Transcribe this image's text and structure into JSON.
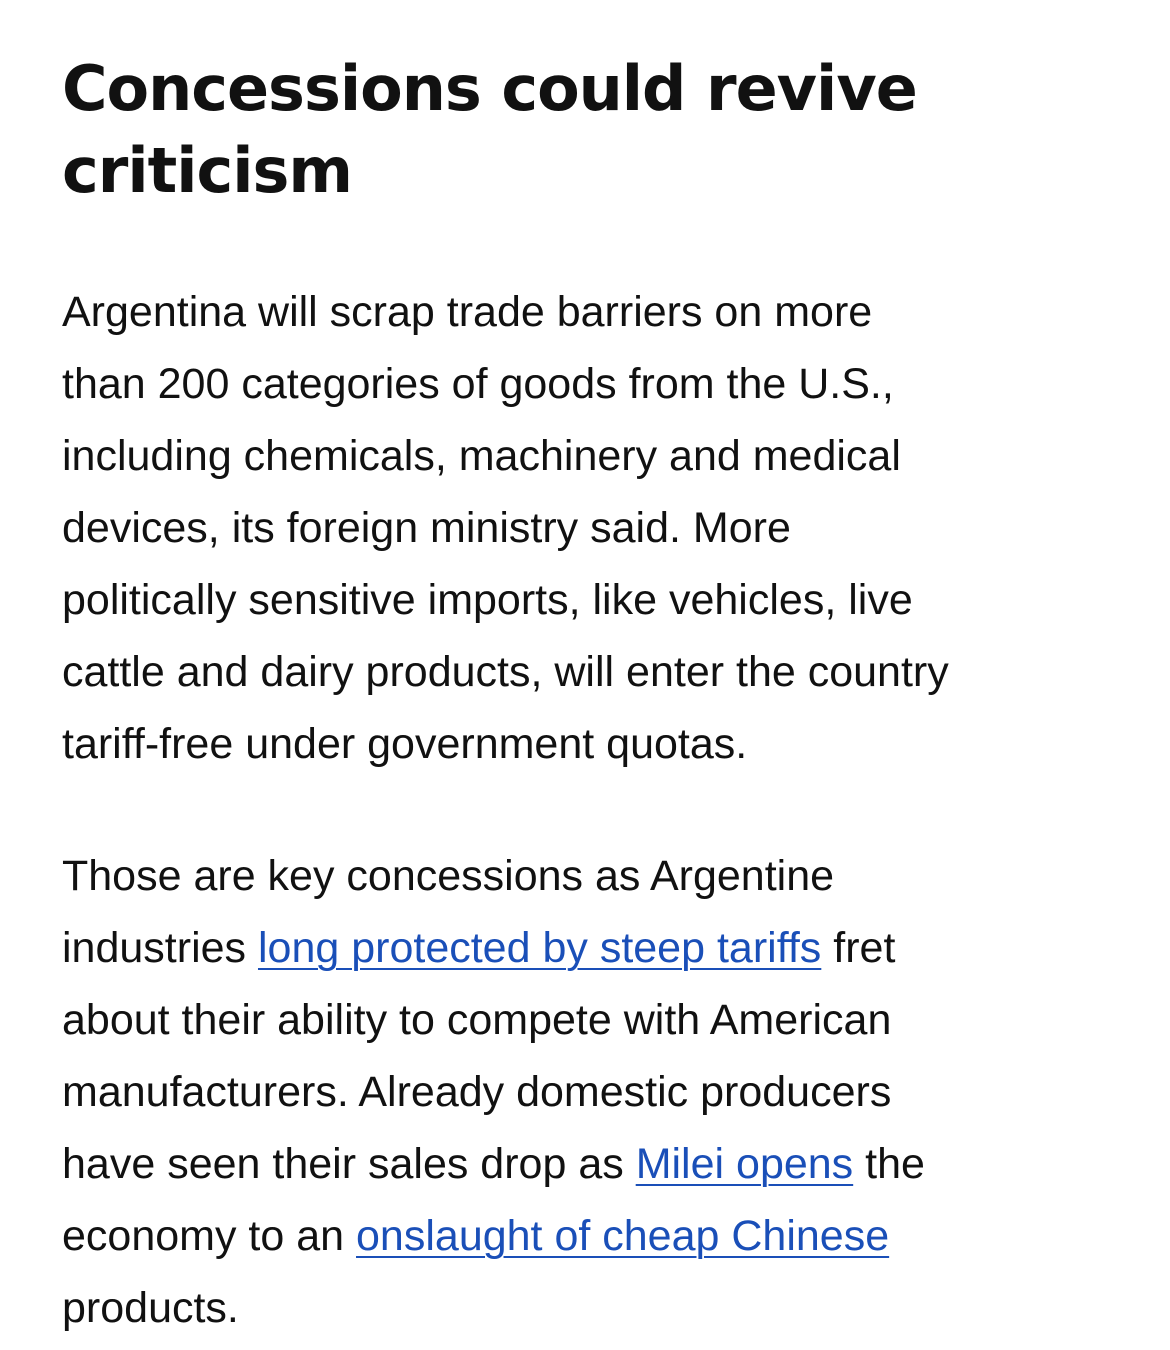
{
  "heading": {
    "lines": [
      "Concessions could revive",
      "criticism"
    ]
  },
  "paragraph1": {
    "lines": [
      "Argentina will scrap trade barriers on more",
      "than 200 categories of goods from the U.S.,",
      "including chemicals, machinery and medical",
      "devices, its foreign ministry said. More",
      "politically sensitive imports, like vehicles, live",
      "cattle and dairy products, will enter the country",
      "tariff-free under government quotas."
    ]
  },
  "paragraph2": {
    "line1": "Those are key concessions as Argentine",
    "line2_pre": "industries ",
    "link1": "long protected by steep tariffs",
    "line2_post": " fret",
    "line3": "about their ability to compete with American",
    "line4": "manufacturers. Already domestic producers",
    "line5_pre": "have seen their sales drop as ",
    "link2": "Milei opens",
    "line5_post": " the",
    "line6_pre": "economy to an ",
    "link3": "onslaught of cheap Chinese",
    "line7": "products."
  },
  "colors": {
    "link": "#1a4fb8",
    "text": "#111111"
  }
}
